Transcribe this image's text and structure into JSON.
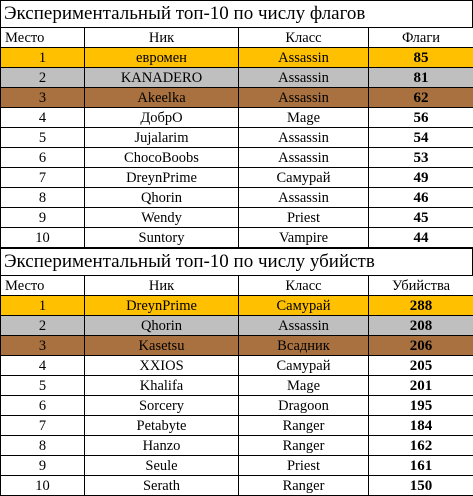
{
  "colors": {
    "gold": "#ffc000",
    "silver": "#bfbfbf",
    "bronze": "#a9713f"
  },
  "flags": {
    "title": "Экспериментальный топ-10 по числу флагов",
    "headers": {
      "place": "Место",
      "nick": "Ник",
      "class": "Класс",
      "value": "Флаги"
    },
    "rows": [
      {
        "place": "1",
        "nick": "евромен",
        "class": "Assassin",
        "value": "85"
      },
      {
        "place": "2",
        "nick": "KANADERO",
        "class": "Assassin",
        "value": "81"
      },
      {
        "place": "3",
        "nick": "Akeelka",
        "class": "Assassin",
        "value": "62"
      },
      {
        "place": "4",
        "nick": "ДобрО",
        "class": "Mage",
        "value": "56"
      },
      {
        "place": "5",
        "nick": "Jujalarim",
        "class": "Assassin",
        "value": "54"
      },
      {
        "place": "6",
        "nick": "ChocoBoobs",
        "class": "Assassin",
        "value": "53"
      },
      {
        "place": "7",
        "nick": "DreynPrime",
        "class": "Самурай",
        "value": "49"
      },
      {
        "place": "8",
        "nick": "Qhorin",
        "class": "Assassin",
        "value": "46"
      },
      {
        "place": "9",
        "nick": "Wendy",
        "class": "Priest",
        "value": "45"
      },
      {
        "place": "10",
        "nick": "Suntory",
        "class": "Vampire",
        "value": "44"
      }
    ]
  },
  "kills": {
    "title": "Экспериментальный топ-10 по числу убийств",
    "headers": {
      "place": "Место",
      "nick": "Ник",
      "class": "Класс",
      "value": "Убийства"
    },
    "rows": [
      {
        "place": "1",
        "nick": "DreynPrime",
        "class": "Самурай",
        "value": "288"
      },
      {
        "place": "2",
        "nick": "Qhorin",
        "class": "Assassin",
        "value": "208"
      },
      {
        "place": "3",
        "nick": "Kasetsu",
        "class": "Всадник",
        "value": "206"
      },
      {
        "place": "4",
        "nick": "XXIOS",
        "class": "Самурай",
        "value": "205"
      },
      {
        "place": "5",
        "nick": "Khalifa",
        "class": "Mage",
        "value": "201"
      },
      {
        "place": "6",
        "nick": "Sorcery",
        "class": "Dragoon",
        "value": "195"
      },
      {
        "place": "7",
        "nick": "Petabyte",
        "class": "Ranger",
        "value": "184"
      },
      {
        "place": "8",
        "nick": "Hanzo",
        "class": "Ranger",
        "value": "162"
      },
      {
        "place": "9",
        "nick": "Seule",
        "class": "Priest",
        "value": "161"
      },
      {
        "place": "10",
        "nick": "Serath",
        "class": "Ranger",
        "value": "150"
      }
    ]
  }
}
